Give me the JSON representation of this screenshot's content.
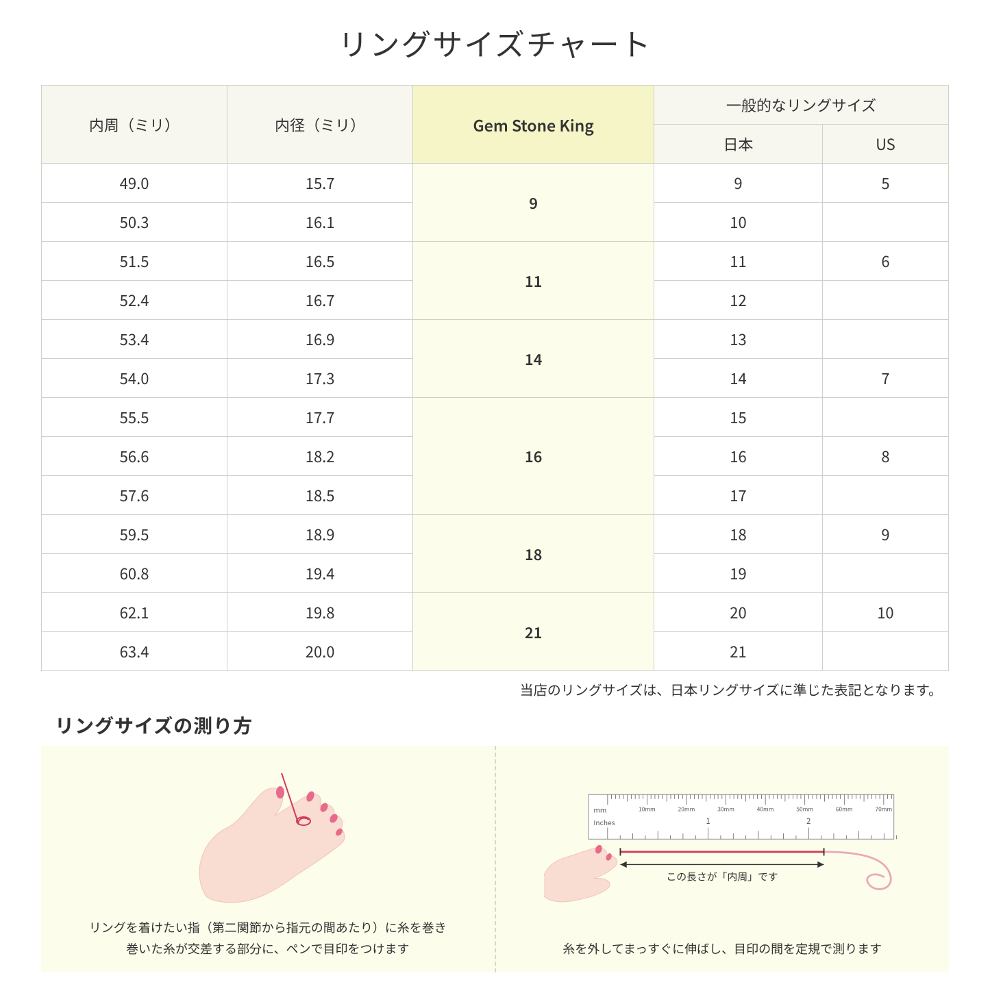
{
  "title": "リングサイズチャート",
  "headers": {
    "circumference": "内周（ミリ）",
    "diameter": "内径（ミリ）",
    "gsk": "Gem Stone King",
    "general": "一般的なリングサイズ",
    "jp": "日本",
    "us": "US"
  },
  "rows": [
    {
      "c": "49.0",
      "d": "15.7",
      "gsk": "9",
      "gskSpan": 2,
      "jp": "9",
      "us": "5"
    },
    {
      "c": "50.3",
      "d": "16.1",
      "jp": "10",
      "us": ""
    },
    {
      "c": "51.5",
      "d": "16.5",
      "gsk": "11",
      "gskSpan": 2,
      "jp": "11",
      "us": "6"
    },
    {
      "c": "52.4",
      "d": "16.7",
      "jp": "12",
      "us": ""
    },
    {
      "c": "53.4",
      "d": "16.9",
      "gsk": "14",
      "gskSpan": 2,
      "jp": "13",
      "us": ""
    },
    {
      "c": "54.0",
      "d": "17.3",
      "jp": "14",
      "us": "7"
    },
    {
      "c": "55.5",
      "d": "17.7",
      "gsk": "16",
      "gskSpan": 3,
      "jp": "15",
      "us": ""
    },
    {
      "c": "56.6",
      "d": "18.2",
      "jp": "16",
      "us": "8"
    },
    {
      "c": "57.6",
      "d": "18.5",
      "jp": "17",
      "us": ""
    },
    {
      "c": "59.5",
      "d": "18.9",
      "gsk": "18",
      "gskSpan": 2,
      "jp": "18",
      "us": "9"
    },
    {
      "c": "60.8",
      "d": "19.4",
      "jp": "19",
      "us": ""
    },
    {
      "c": "62.1",
      "d": "19.8",
      "gsk": "21",
      "gskSpan": 2,
      "jp": "20",
      "us": "10"
    },
    {
      "c": "63.4",
      "d": "20.0",
      "jp": "21",
      "us": ""
    }
  ],
  "note": "当店のリングサイズは、日本リングサイズに準じた表記となります。",
  "howtoTitle": "リングサイズの測り方",
  "leftCaption": "リングを着けたい指（第二関節から指元の間あたり）に糸を巻き\n巻いた糸が交差する部分に、ペンで目印をつけます",
  "measureLabel": "この長さが「内周」です",
  "rightCaption": "糸を外してまっすぐに伸ばし、目印の間を定規で測ります",
  "rulerLabels": {
    "mm": "mm",
    "inches": "Inches",
    "mmTicks": [
      "10mm",
      "20mm",
      "30mm",
      "40mm",
      "50mm",
      "60mm",
      "70mm"
    ],
    "inchTicks": [
      "1",
      "2"
    ]
  },
  "colors": {
    "headerBg": "#f7f7f0",
    "gskHeaderBg": "#f5f5c8",
    "gskCellBg": "#fdfdeb",
    "border": "#d0d0c8",
    "howtoBg": "#fdfdeb",
    "skin": "#f9dcd2",
    "skinShadow": "#f0c5b8",
    "nail": "#e86a8a",
    "thread": "#d13a5a",
    "rulerBody": "#ffffff",
    "rulerBorder": "#888"
  }
}
